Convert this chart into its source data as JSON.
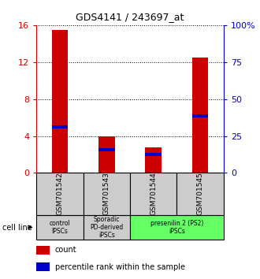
{
  "title": "GDS4141 / 243697_at",
  "samples": [
    "GSM701542",
    "GSM701543",
    "GSM701544",
    "GSM701545"
  ],
  "count_values": [
    15.5,
    4.0,
    2.8,
    12.5
  ],
  "percentile_values": [
    5.0,
    2.5,
    2.0,
    6.2
  ],
  "left_ylim": [
    0,
    16
  ],
  "right_ylim": [
    0,
    100
  ],
  "left_yticks": [
    0,
    4,
    8,
    12,
    16
  ],
  "right_yticks": [
    0,
    25,
    50,
    75,
    100
  ],
  "right_yticklabels": [
    "0",
    "25",
    "50",
    "75",
    "100%"
  ],
  "bar_color": "#cc0000",
  "blue_color": "#0000cc",
  "cell_line_groups": [
    {
      "label": "control\nIPSCs",
      "span": [
        0,
        1
      ],
      "color": "#cccccc"
    },
    {
      "label": "Sporadic\nPD-derived\niPSCs",
      "span": [
        1,
        2
      ],
      "color": "#cccccc"
    },
    {
      "label": "presenilin 2 (PS2)\niPSCs",
      "span": [
        2,
        4
      ],
      "color": "#66ff66"
    }
  ],
  "legend_count_label": "count",
  "legend_pct_label": "percentile rank within the sample",
  "cell_line_label": "cell line",
  "bar_width": 0.35,
  "bg_color": "#ffffff",
  "plot_bg": "#ffffff",
  "tick_bg": "#cccccc"
}
